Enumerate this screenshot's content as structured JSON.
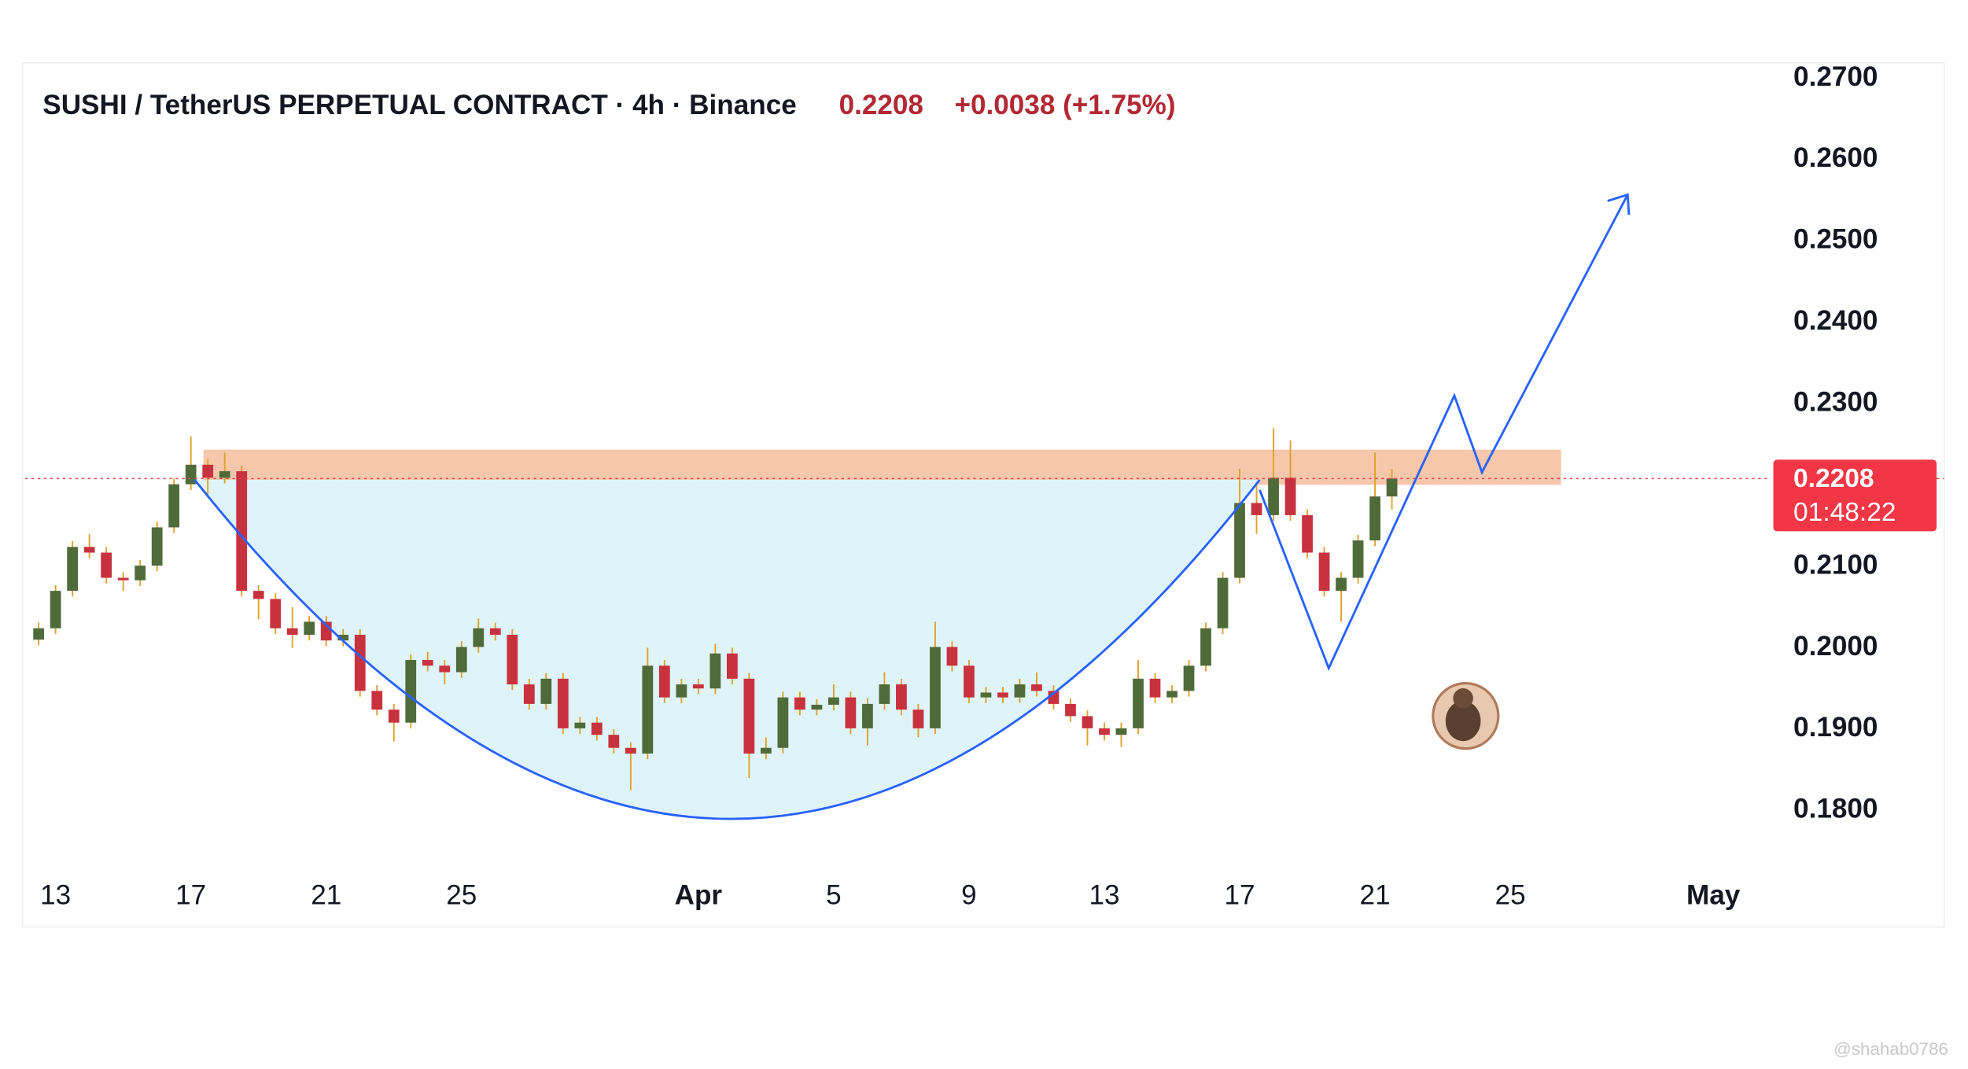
{
  "chart_data": {
    "type": "candlestick",
    "title": "SUSHI / TetherUS PERPETUAL CONTRACT · 4h · Binance",
    "last_price": 0.2208,
    "change": "+0.0038 (+1.75%)",
    "countdown": "01:48:22",
    "watermark": "@shahab0786",
    "up_color": "#4f6b3a",
    "down_color": "#c8323f",
    "wick_color": "#e0a22e",
    "price_line_color": "#e5404f",
    "grid": false,
    "xlim": [
      -0.9,
      50.7
    ],
    "xticks": [
      {
        "value": 0,
        "label": "13"
      },
      {
        "value": 4,
        "label": "17"
      },
      {
        "value": 8,
        "label": "21"
      },
      {
        "value": 12,
        "label": "25"
      },
      {
        "value": 19,
        "label": "Apr"
      },
      {
        "value": 23,
        "label": "5"
      },
      {
        "value": 27,
        "label": "9"
      },
      {
        "value": 31,
        "label": "13"
      },
      {
        "value": 35,
        "label": "17"
      },
      {
        "value": 39,
        "label": "21"
      },
      {
        "value": 43,
        "label": "25"
      },
      {
        "value": 49,
        "label": "May"
      }
    ],
    "ylim": [
      0.1731,
      0.2719
    ],
    "yticks": [
      {
        "value": 0.18,
        "label": "0.1800"
      },
      {
        "value": 0.19,
        "label": "0.1900"
      },
      {
        "value": 0.2,
        "label": "0.2000"
      },
      {
        "value": 0.21,
        "label": "0.2100"
      },
      {
        "value": 0.23,
        "label": "0.2300"
      },
      {
        "value": 0.24,
        "label": "0.2400"
      },
      {
        "value": 0.25,
        "label": "0.2500"
      },
      {
        "value": 0.26,
        "label": "0.2600"
      },
      {
        "value": 0.27,
        "label": "0.2700"
      }
    ],
    "x": [
      -0.5,
      0,
      0.5,
      1,
      1.5,
      2,
      2.5,
      3,
      3.5,
      4,
      4.5,
      5,
      5.5,
      6,
      6.5,
      7,
      7.5,
      8,
      8.5,
      9,
      9.5,
      10,
      10.5,
      11,
      11.5,
      12,
      12.5,
      13,
      13.5,
      14,
      14.5,
      15,
      15.5,
      16,
      16.5,
      17,
      17.5,
      18,
      18.5,
      19,
      19.5,
      20,
      20.5,
      21,
      21.5,
      22,
      22.5,
      23,
      23.5,
      24,
      24.5,
      25,
      25.5,
      26,
      26.5,
      27,
      27.5,
      28,
      28.5,
      29,
      29.5,
      30,
      30.5,
      31,
      31.5,
      32,
      32.5,
      33,
      33.5,
      34,
      34.5,
      35,
      35.5,
      36,
      36.5,
      37,
      37.5,
      38,
      38.5,
      39,
      39.5
    ],
    "open": [
      0.201,
      0.2024,
      0.207,
      0.2124,
      0.2117,
      0.2086,
      0.2083,
      0.2101,
      0.2148,
      0.2201,
      0.2225,
      0.2209,
      0.2217,
      0.207,
      0.206,
      0.2024,
      0.2016,
      0.2032,
      0.2009,
      0.2016,
      0.1947,
      0.1924,
      0.1908,
      0.1985,
      0.1978,
      0.197,
      0.2001,
      0.2024,
      0.2016,
      0.1955,
      0.1931,
      0.1962,
      0.1901,
      0.1908,
      0.1893,
      0.1877,
      0.187,
      0.1978,
      0.1939,
      0.1955,
      0.195,
      0.1993,
      0.1962,
      0.187,
      0.1877,
      0.1939,
      0.1924,
      0.193,
      0.1939,
      0.1901,
      0.1931,
      0.1955,
      0.1924,
      0.1901,
      0.2001,
      0.1978,
      0.1939,
      0.1945,
      0.1939,
      0.1955,
      0.1947,
      0.1931,
      0.1916,
      0.1901,
      0.1893,
      0.1901,
      0.1962,
      0.1939,
      0.1947,
      0.1978,
      0.2024,
      0.2086,
      0.2178,
      0.2163,
      0.2209,
      0.2163,
      0.2117,
      0.207,
      0.2086,
      0.2132,
      0.2186
    ],
    "high": [
      0.2031,
      0.2077,
      0.2131,
      0.214,
      0.2124,
      0.2093,
      0.2108,
      0.2155,
      0.2208,
      0.226,
      0.2232,
      0.224,
      0.2224,
      0.2077,
      0.2067,
      0.205,
      0.2039,
      0.2039,
      0.2023,
      0.2023,
      0.1954,
      0.1931,
      0.1992,
      0.1995,
      0.1985,
      0.2008,
      0.2036,
      0.2031,
      0.2023,
      0.1962,
      0.1969,
      0.1969,
      0.1915,
      0.1915,
      0.19,
      0.1884,
      0.2,
      0.1985,
      0.1962,
      0.1962,
      0.2005,
      0.2,
      0.1969,
      0.189,
      0.1946,
      0.1946,
      0.1937,
      0.1955,
      0.1946,
      0.1938,
      0.197,
      0.1962,
      0.1931,
      0.2032,
      0.2008,
      0.1985,
      0.1952,
      0.1952,
      0.1962,
      0.197,
      0.1954,
      0.1938,
      0.1923,
      0.1908,
      0.1908,
      0.1985,
      0.1969,
      0.1954,
      0.1985,
      0.2031,
      0.2093,
      0.222,
      0.22,
      0.227,
      0.2255,
      0.217,
      0.2124,
      0.2093,
      0.2139,
      0.224,
      0.222
    ],
    "low": [
      0.2003,
      0.2017,
      0.2063,
      0.211,
      0.2079,
      0.207,
      0.2076,
      0.2094,
      0.2141,
      0.2194,
      0.2185,
      0.2202,
      0.2063,
      0.2035,
      0.2017,
      0.2,
      0.2009,
      0.2002,
      0.2002,
      0.194,
      0.1917,
      0.1885,
      0.1901,
      0.1971,
      0.1955,
      0.1963,
      0.1994,
      0.2009,
      0.1948,
      0.1924,
      0.1924,
      0.1894,
      0.1894,
      0.1886,
      0.187,
      0.1825,
      0.1863,
      0.1932,
      0.1932,
      0.1943,
      0.1943,
      0.1955,
      0.184,
      0.1863,
      0.187,
      0.1917,
      0.1917,
      0.1923,
      0.1894,
      0.188,
      0.1924,
      0.1917,
      0.189,
      0.1894,
      0.1971,
      0.1932,
      0.1932,
      0.1932,
      0.1932,
      0.194,
      0.1924,
      0.1909,
      0.188,
      0.1886,
      0.1878,
      0.1894,
      0.1932,
      0.1932,
      0.194,
      0.1971,
      0.2017,
      0.2079,
      0.214,
      0.2156,
      0.2156,
      0.211,
      0.2063,
      0.2032,
      0.2079,
      0.2125,
      0.217
    ],
    "close": [
      0.2024,
      0.207,
      0.2124,
      0.2117,
      0.2086,
      0.2083,
      0.2101,
      0.2148,
      0.2201,
      0.2225,
      0.2209,
      0.2217,
      0.207,
      0.206,
      0.2024,
      0.2016,
      0.2032,
      0.2009,
      0.2016,
      0.1947,
      0.1924,
      0.1908,
      0.1985,
      0.1978,
      0.197,
      0.2001,
      0.2024,
      0.2016,
      0.1955,
      0.1931,
      0.1962,
      0.1901,
      0.1908,
      0.1893,
      0.1877,
      0.187,
      0.1978,
      0.1939,
      0.1955,
      0.195,
      0.1993,
      0.1962,
      0.187,
      0.1877,
      0.1939,
      0.1924,
      0.193,
      0.1939,
      0.1901,
      0.1931,
      0.1955,
      0.1924,
      0.1901,
      0.2001,
      0.1978,
      0.1939,
      0.1945,
      0.1939,
      0.1955,
      0.1947,
      0.1931,
      0.1916,
      0.1901,
      0.1893,
      0.1901,
      0.1962,
      0.1939,
      0.1947,
      0.1978,
      0.2024,
      0.2086,
      0.2178,
      0.2163,
      0.2209,
      0.2163,
      0.2117,
      0.207,
      0.2086,
      0.2132,
      0.2186,
      0.2208
    ]
  }
}
